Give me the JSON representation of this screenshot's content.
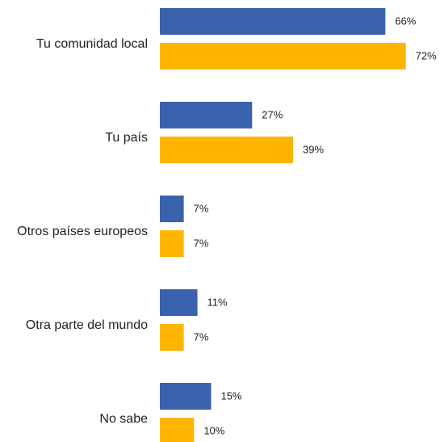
{
  "chart_data": {
    "type": "hbar",
    "categories": [
      "Tu comunidad local",
      "Tu país",
      "Otros países europeos",
      "Otra parte del mundo",
      "No sabe"
    ],
    "series": [
      {
        "color": "#3a62ad",
        "values": [
          66,
          27,
          7,
          11,
          15
        ],
        "value_labels": [
          "66%",
          "27%",
          "7%",
          "11%",
          "15%"
        ]
      },
      {
        "color": "#ffb400",
        "values": [
          72,
          39,
          7,
          7,
          10
        ],
        "value_labels": [
          "72%",
          "39%",
          "7%",
          "7%",
          "10%"
        ]
      }
    ],
    "xlim": [
      0,
      82
    ]
  }
}
